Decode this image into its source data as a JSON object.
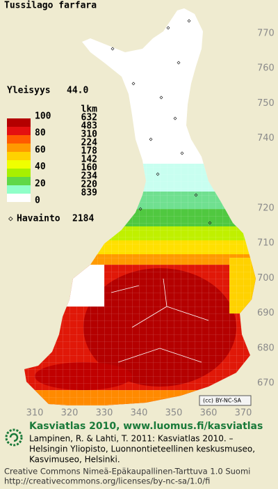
{
  "title": "Tussilago farfara",
  "frequency": {
    "label": "Yleisyys",
    "value": "44.0"
  },
  "legend": {
    "scale": [
      100,
      80,
      60,
      40,
      20,
      0
    ],
    "count_header": "lkm",
    "counts": [
      632,
      483,
      310,
      224,
      178,
      142,
      160,
      234,
      220,
      839
    ],
    "colors": [
      "#b40000",
      "#e41010",
      "#ff5a00",
      "#ff9a00",
      "#ffd200",
      "#f0ff00",
      "#a8f000",
      "#60d848",
      "#90ffc8",
      "#ffffff"
    ],
    "observation_label": "Havainto",
    "observation_count": 2184
  },
  "northing": [
    770,
    760,
    750,
    740,
    720,
    710,
    700,
    690,
    680,
    670
  ],
  "easting": [
    310,
    320,
    330,
    340,
    350,
    360,
    370
  ],
  "license_badge": "BY-NC-SA",
  "footer": {
    "heading": "Kasviatlas 2010, www.luomus.fi/kasviatlas",
    "citation": [
      "Lampinen, R. & Lahti, T. 2011: Kasviatlas 2010. –",
      "Helsingin Yliopisto, Luonnontieteellinen keskusmuseo,",
      "Kasvimuseo, Helsinki."
    ],
    "license": [
      "Creative Commons Nimeä-Epäkaupallinen-Tarttuva 1.0 Suomi",
      "http://creativecommons.org/licenses/by-nc-sa/1.0/fi"
    ]
  }
}
